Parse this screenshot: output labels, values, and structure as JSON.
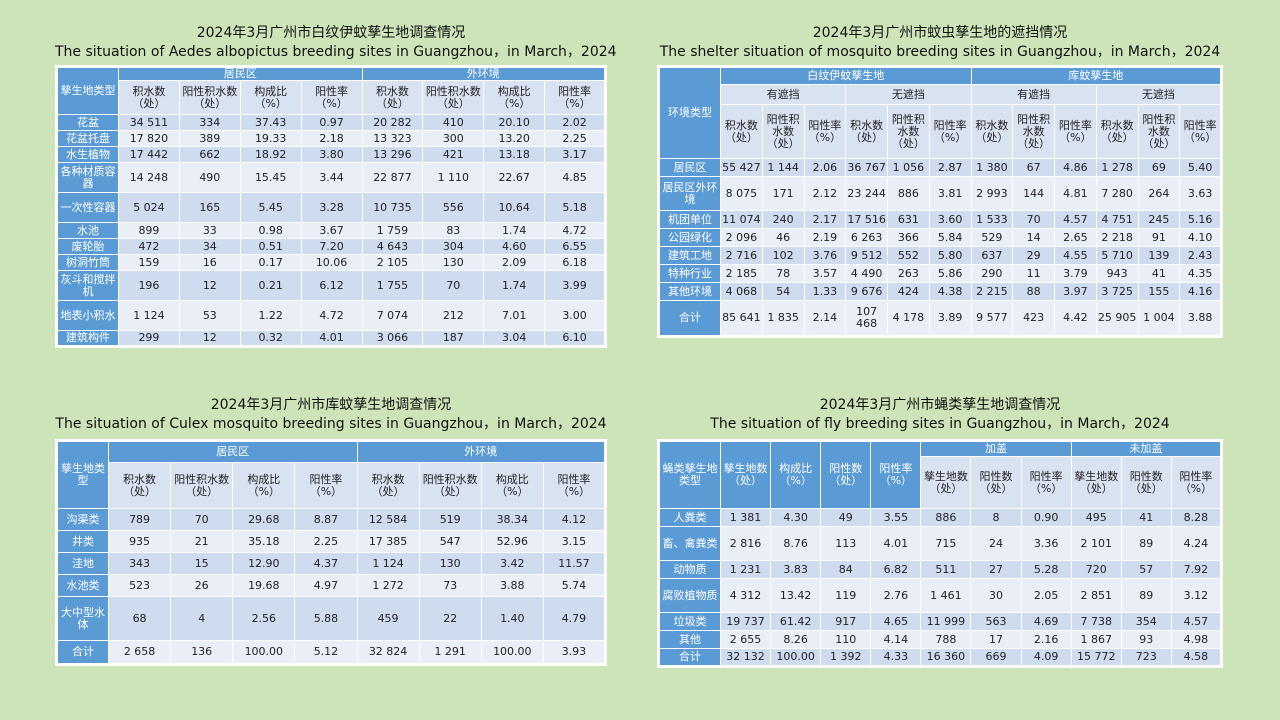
{
  "tables": [
    {
      "title_cn": "2024年3月广州市白纹伊蚊孳生地调查情况",
      "title_en": "The situation of Aedes albopictus breeding sites in Guangzhou，in March，2024",
      "corner": "孳生地类型",
      "groups": [
        "居民区",
        "外环境"
      ],
      "subheaders": [
        "积水数（处）",
        "阳性积水数（处）",
        "构成比（%）",
        "阳性率（%）",
        "积水数（处）",
        "阳性积水数（处）",
        "构成比（%）",
        "阳性率（%）"
      ],
      "rows": [
        {
          "label": "花盆",
          "values": [
            "34 511",
            "334",
            "37.43",
            "0.97",
            "20 282",
            "410",
            "20.10",
            "2.02"
          ]
        },
        {
          "label": "花盆托盘",
          "values": [
            "17 820",
            "389",
            "19.33",
            "2.18",
            "13 323",
            "300",
            "13.20",
            "2.25"
          ]
        },
        {
          "label": "水生植物",
          "values": [
            "17 442",
            "662",
            "18.92",
            "3.80",
            "13 296",
            "421",
            "13.18",
            "3.17"
          ]
        },
        {
          "label": "各种材质容器",
          "values": [
            "14 248",
            "490",
            "15.45",
            "3.44",
            "22 877",
            "1 110",
            "22.67",
            "4.85"
          ]
        },
        {
          "label": "一次性容器",
          "values": [
            "5 024",
            "165",
            "5.45",
            "3.28",
            "10 735",
            "556",
            "10.64",
            "5.18"
          ]
        },
        {
          "label": "水池",
          "values": [
            "899",
            "33",
            "0.98",
            "3.67",
            "1 759",
            "83",
            "1.74",
            "4.72"
          ]
        },
        {
          "label": "废轮胎",
          "values": [
            "472",
            "34",
            "0.51",
            "7.20",
            "4 643",
            "304",
            "4.60",
            "6.55"
          ]
        },
        {
          "label": "树洞竹筒",
          "values": [
            "159",
            "16",
            "0.17",
            "10.06",
            "2 105",
            "130",
            "2.09",
            "6.18"
          ]
        },
        {
          "label": "灰斗和搅拌机",
          "values": [
            "196",
            "12",
            "0.21",
            "6.12",
            "1 755",
            "70",
            "1.74",
            "3.99"
          ]
        },
        {
          "label": "地表小积水",
          "values": [
            "1 124",
            "53",
            "1.22",
            "4.72",
            "7 074",
            "212",
            "7.01",
            "3.00"
          ]
        },
        {
          "label": "建筑构件",
          "values": [
            "299",
            "12",
            "0.32",
            "4.01",
            "3 066",
            "187",
            "3.04",
            "6.10"
          ]
        }
      ]
    },
    {
      "title_cn": "2024年3月广州市蚊虫孳生地的遮挡情况",
      "title_en": "The shelter situation of mosquito breeding sites in Guangzhou，in March，2024",
      "corner": "环境类型",
      "groups": [
        "白纹伊蚊孳生地",
        "库蚊孳生地"
      ],
      "subgroups": [
        "有遮挡",
        "无遮挡",
        "有遮挡",
        "无遮挡"
      ],
      "subheaders": [
        "积水数（处）",
        "阳性积水数（处）",
        "阳性率（%）",
        "积水数（处）",
        "阳性积水数（处）",
        "阳性率（%）",
        "积水数（处）",
        "阳性积水数（处）",
        "阳性率（%）",
        "积水数（处）",
        "阳性积水数（处）",
        "阳性率（%）"
      ],
      "rows": [
        {
          "label": "居民区",
          "values": [
            "55 427",
            "1 144",
            "2.06",
            "36 767",
            "1 056",
            "2.87",
            "1 380",
            "67",
            "4.86",
            "1 278",
            "69",
            "5.40"
          ]
        },
        {
          "label": "居民区外环境",
          "values": [
            "8 075",
            "171",
            "2.12",
            "23 244",
            "886",
            "3.81",
            "2 993",
            "144",
            "4.81",
            "7 280",
            "264",
            "3.63"
          ]
        },
        {
          "label": "机团单位",
          "values": [
            "11 074",
            "240",
            "2.17",
            "17 516",
            "631",
            "3.60",
            "1 533",
            "70",
            "4.57",
            "4 751",
            "245",
            "5.16"
          ]
        },
        {
          "label": "公园绿化",
          "values": [
            "2 096",
            "46",
            "2.19",
            "6 263",
            "366",
            "5.84",
            "529",
            "14",
            "2.65",
            "2 218",
            "91",
            "4.10"
          ]
        },
        {
          "label": "建筑工地",
          "values": [
            "2 716",
            "102",
            "3.76",
            "9 512",
            "552",
            "5.80",
            "637",
            "29",
            "4.55",
            "5 710",
            "139",
            "2.43"
          ]
        },
        {
          "label": "特种行业",
          "values": [
            "2 185",
            "78",
            "3.57",
            "4 490",
            "263",
            "5.86",
            "290",
            "11",
            "3.79",
            "943",
            "41",
            "4.35"
          ]
        },
        {
          "label": "其他环境",
          "values": [
            "4 068",
            "54",
            "1.33",
            "9 676",
            "424",
            "4.38",
            "2 215",
            "88",
            "3.97",
            "3 725",
            "155",
            "4.16"
          ]
        },
        {
          "label": "合计",
          "values": [
            "85 641",
            "1 835",
            "2.14",
            "107 468",
            "4 178",
            "3.89",
            "9 577",
            "423",
            "4.42",
            "25 905",
            "1 004",
            "3.88"
          ]
        }
      ]
    },
    {
      "title_cn": "2024年3月广州市库蚊孳生地调查情况",
      "title_en": "The situation of Culex mosquito breeding sites in Guangzhou，in March，2024",
      "corner": "孳生地类型",
      "groups": [
        "居民区",
        "外环境"
      ],
      "subheaders": [
        "积水数（处）",
        "阳性积水数（处）",
        "构成比（%）",
        "阳性率（%）",
        "积水数（处）",
        "阳性积水数（处）",
        "构成比（%）",
        "阳性率（%）"
      ],
      "rows": [
        {
          "label": "沟渠类",
          "values": [
            "789",
            "70",
            "29.68",
            "8.87",
            "12 584",
            "519",
            "38.34",
            "4.12"
          ]
        },
        {
          "label": "井类",
          "values": [
            "935",
            "21",
            "35.18",
            "2.25",
            "17 385",
            "547",
            "52.96",
            "3.15"
          ]
        },
        {
          "label": "洼地",
          "values": [
            "343",
            "15",
            "12.90",
            "4.37",
            "1 124",
            "130",
            "3.42",
            "11.57"
          ]
        },
        {
          "label": "水池类",
          "values": [
            "523",
            "26",
            "19.68",
            "4.97",
            "1 272",
            "73",
            "3.88",
            "5.74"
          ]
        },
        {
          "label": "大中型水体",
          "values": [
            "68",
            "4",
            "2.56",
            "5.88",
            "459",
            "22",
            "1.40",
            "4.79"
          ]
        },
        {
          "label": "合计",
          "values": [
            "2 658",
            "136",
            "100.00",
            "5.12",
            "32 824",
            "1 291",
            "100.00",
            "3.93"
          ]
        }
      ]
    },
    {
      "title_cn": "2024年3月广州市蝇类孳生地调查情况",
      "title_en": "The situation of fly breeding sites in Guangzhou，in March，2024",
      "corner": "蝇类孳生地类型",
      "lead_headers": [
        "孳生地数（处）",
        "构成比（%）",
        "阳性数（处）",
        "阳性率（%）"
      ],
      "groups": [
        "加盖",
        "未加盖"
      ],
      "subheaders": [
        "孳生地数（处）",
        "阳性数（处）",
        "阳性率（%）",
        "孳生地数（处）",
        "阳性数（处）",
        "阳性率（%）"
      ],
      "rows": [
        {
          "label": "人粪类",
          "values": [
            "1 381",
            "4.30",
            "49",
            "3.55",
            "886",
            "8",
            "0.90",
            "495",
            "41",
            "8.28"
          ]
        },
        {
          "label": "畜、禽粪类",
          "values": [
            "2 816",
            "8.76",
            "113",
            "4.01",
            "715",
            "24",
            "3.36",
            "2 101",
            "89",
            "4.24"
          ]
        },
        {
          "label": "动物质",
          "values": [
            "1 231",
            "3.83",
            "84",
            "6.82",
            "511",
            "27",
            "5.28",
            "720",
            "57",
            "7.92"
          ]
        },
        {
          "label": "腐败植物质",
          "values": [
            "4 312",
            "13.42",
            "119",
            "2.76",
            "1 461",
            "30",
            "2.05",
            "2 851",
            "89",
            "3.12"
          ]
        },
        {
          "label": "垃圾类",
          "values": [
            "19 737",
            "61.42",
            "917",
            "4.65",
            "11 999",
            "563",
            "4.69",
            "7 738",
            "354",
            "4.57"
          ]
        },
        {
          "label": "其他",
          "values": [
            "2 655",
            "8.26",
            "110",
            "4.14",
            "788",
            "17",
            "2.16",
            "1 867",
            "93",
            "4.98"
          ]
        },
        {
          "label": "合计",
          "values": [
            "32 132",
            "100.00",
            "1 392",
            "4.33",
            "16 360",
            "669",
            "4.09",
            "15 772",
            "723",
            "4.58"
          ]
        }
      ]
    }
  ],
  "colors": {
    "header_blue": "#5b9bd5",
    "row_dark": "#cfdcef",
    "row_light": "#e9eef7",
    "background": "#cde3b8"
  }
}
